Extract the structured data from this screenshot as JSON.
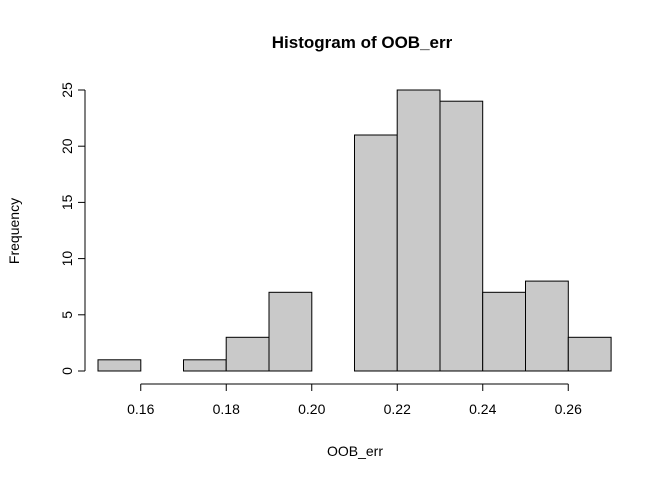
{
  "chart_data": {
    "type": "bar",
    "title": "Histogram of OOB_err",
    "xlabel": "OOB_err",
    "ylabel": "Frequency",
    "bin_edges": [
      0.15,
      0.16,
      0.17,
      0.18,
      0.19,
      0.2,
      0.21,
      0.22,
      0.23,
      0.24,
      0.25,
      0.26,
      0.27
    ],
    "counts": [
      1,
      0,
      1,
      3,
      7,
      0,
      21,
      25,
      24,
      7,
      8,
      3
    ],
    "x_ticks": [
      "0.16",
      "0.18",
      "0.20",
      "0.22",
      "0.24",
      "0.26"
    ],
    "x_tick_values": [
      0.16,
      0.18,
      0.2,
      0.22,
      0.24,
      0.26
    ],
    "y_ticks": [
      "0",
      "5",
      "10",
      "15",
      "20",
      "25"
    ],
    "y_tick_values": [
      0,
      5,
      10,
      15,
      20,
      25
    ],
    "bar_fill": "#c9c9c9",
    "bar_stroke": "#000000",
    "grid": false,
    "legend": "none"
  }
}
